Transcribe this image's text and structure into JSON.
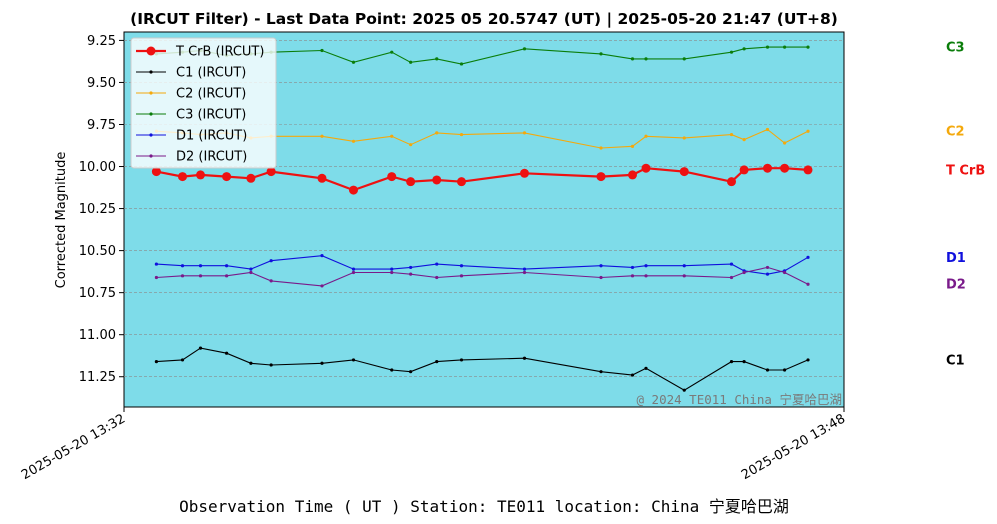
{
  "chart_data": {
    "type": "line",
    "title": "(IRCUT Filter) - Last Data Point: 2025 05 20.5747 (UT) | 2025-05-20 21:47 (UT+8)",
    "ylabel": "Corrected Magnitude",
    "xlabel": "Observation Time ( UT )  Station: TE011 location: China 宁夏哈巴湖",
    "watermark": "@ 2024 TE011 China 宁夏哈巴湖",
    "ylim": [
      11.43,
      9.2
    ],
    "y_inverted": true,
    "yticks": [
      9.25,
      9.5,
      9.75,
      10.0,
      10.25,
      10.5,
      10.75,
      11.0,
      11.25
    ],
    "ytick_labels": [
      "9.25",
      "9.50",
      "9.75",
      "10.00",
      "10.25",
      "10.50",
      "10.75",
      "11.00",
      "11.25"
    ],
    "xlim": [
      0,
      16
    ],
    "xticks": [
      0,
      16
    ],
    "xtick_labels": [
      "2025-05-20 13:32",
      "2025-05-20 13:48"
    ],
    "x_unit": "minutes after 2025-05-20 13:32 UT",
    "x": [
      0.72,
      1.3,
      1.7,
      2.28,
      2.82,
      3.27,
      4.4,
      5.1,
      5.95,
      6.37,
      6.95,
      7.5,
      8.9,
      10.6,
      11.3,
      11.6,
      12.45,
      13.5,
      13.78,
      14.3,
      14.68,
      15.2
    ],
    "grid": true,
    "legend_position": "upper left",
    "plot_bg": "#7edce9",
    "series": [
      {
        "name": "T CrB (IRCUT)",
        "color": "#ee1111",
        "right_label": "T CrB",
        "values": [
          10.03,
          10.06,
          10.05,
          10.06,
          10.07,
          10.03,
          10.07,
          10.14,
          10.06,
          10.09,
          10.08,
          10.09,
          10.04,
          10.06,
          10.05,
          10.01,
          10.03,
          10.09,
          10.02,
          10.01,
          10.01,
          10.02
        ]
      },
      {
        "name": "C1 (IRCUT)",
        "color": "#000000",
        "right_label": "C1",
        "values": [
          11.16,
          11.15,
          11.08,
          11.11,
          11.17,
          11.18,
          11.17,
          11.15,
          11.21,
          11.22,
          11.16,
          11.15,
          11.14,
          11.22,
          11.24,
          11.2,
          11.33,
          11.16,
          11.16,
          11.21,
          11.21,
          11.15
        ]
      },
      {
        "name": "C2 (IRCUT)",
        "color": "#f4a90c",
        "right_label": "C2",
        "values": [
          9.79,
          9.8,
          9.81,
          9.8,
          9.83,
          9.82,
          9.82,
          9.85,
          9.82,
          9.87,
          9.8,
          9.81,
          9.8,
          9.89,
          9.88,
          9.82,
          9.83,
          9.81,
          9.84,
          9.78,
          9.86,
          9.79
        ]
      },
      {
        "name": "C3 (IRCUT)",
        "color": "#0a7d0a",
        "right_label": "C3",
        "values": [
          9.33,
          9.32,
          9.31,
          9.34,
          9.33,
          9.32,
          9.31,
          9.38,
          9.32,
          9.38,
          9.36,
          9.39,
          9.3,
          9.33,
          9.36,
          9.36,
          9.36,
          9.32,
          9.3,
          9.29,
          9.29,
          9.29
        ]
      },
      {
        "name": "D1 (IRCUT)",
        "color": "#1010dd",
        "right_label": "D1",
        "values": [
          10.58,
          10.59,
          10.59,
          10.59,
          10.61,
          10.56,
          10.53,
          10.61,
          10.61,
          10.6,
          10.58,
          10.59,
          10.61,
          10.59,
          10.6,
          10.59,
          10.59,
          10.58,
          10.62,
          10.64,
          10.62,
          10.54
        ]
      },
      {
        "name": "D2 (IRCUT)",
        "color": "#7a1a8a",
        "right_label": "D2",
        "values": [
          10.66,
          10.65,
          10.65,
          10.65,
          10.63,
          10.68,
          10.71,
          10.63,
          10.63,
          10.64,
          10.66,
          10.65,
          10.63,
          10.66,
          10.65,
          10.65,
          10.65,
          10.66,
          10.63,
          10.6,
          10.63,
          10.7
        ]
      }
    ]
  }
}
